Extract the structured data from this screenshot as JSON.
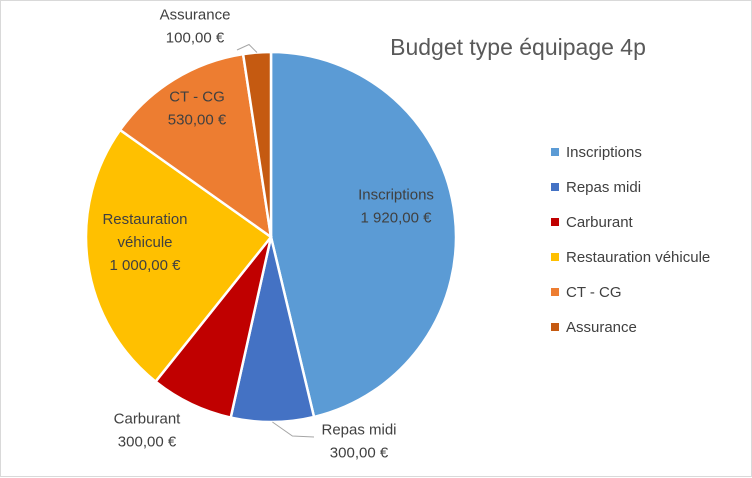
{
  "chart_data": {
    "type": "pie",
    "title": "Budget  type équipage 4p",
    "categories": [
      "Inscriptions",
      "Repas midi",
      "Carburant",
      "Restauration véhicule",
      "CT - CG",
      "Assurance"
    ],
    "values": [
      1920,
      300,
      300,
      1000,
      530,
      100
    ],
    "value_labels": [
      "1 920,00 €",
      "300,00 €",
      "300,00 €",
      "1 000,00 €",
      "530,00 €",
      "100,00 €"
    ],
    "data_labels": [
      [
        "Inscriptions",
        "1 920,00 €"
      ],
      [
        "Repas midi",
        "300,00 €"
      ],
      [
        "Carburant",
        "300,00 €"
      ],
      [
        "Restauration",
        "véhicule",
        "1 000,00 €"
      ],
      [
        "CT - CG",
        "530,00 €"
      ],
      [
        "Assurance",
        "100,00 €"
      ]
    ],
    "colors": [
      "#5b9bd5",
      "#4472c4",
      "#c00000",
      "#ffc000",
      "#ed7d31",
      "#c55a11"
    ],
    "legend_position": "right"
  }
}
